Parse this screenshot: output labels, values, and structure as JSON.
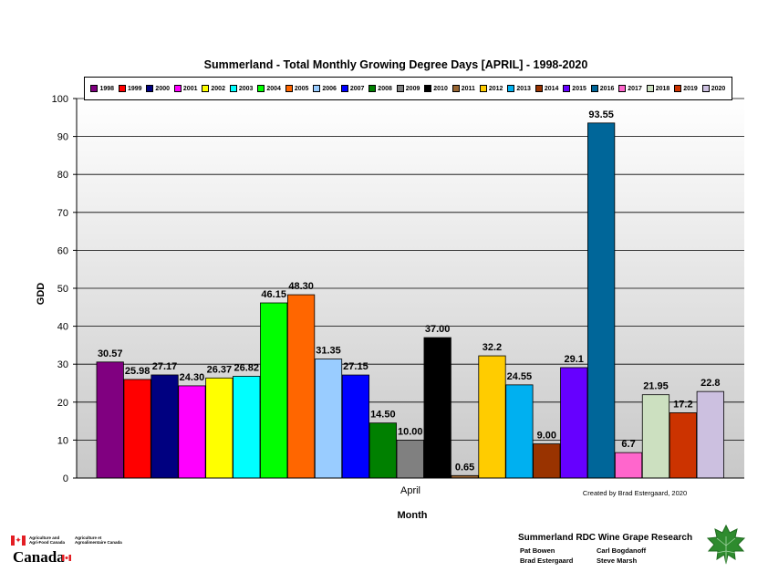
{
  "chart_data": {
    "type": "bar",
    "title": "Summerland - Total Monthly Growing Degree Days [APRIL] - 1998-2020",
    "xlabel": "Month",
    "ylabel": "GDD",
    "categories": [
      "April"
    ],
    "ylim": [
      0,
      100
    ],
    "yticks": [
      "0",
      "10",
      "20",
      "30",
      "40",
      "50",
      "60",
      "70",
      "80",
      "90",
      "100"
    ],
    "grid": true,
    "legend_position": "top",
    "series": [
      {
        "name": "1998",
        "values": [
          30.57
        ],
        "label": "30.57",
        "color": "#800080"
      },
      {
        "name": "1999",
        "values": [
          25.98
        ],
        "label": "25.98",
        "color": "#ff0000"
      },
      {
        "name": "2000",
        "values": [
          27.17
        ],
        "label": "27.17",
        "color": "#000080"
      },
      {
        "name": "2001",
        "values": [
          24.3
        ],
        "label": "24.30",
        "color": "#ff00ff"
      },
      {
        "name": "2002",
        "values": [
          26.37
        ],
        "label": "26.37",
        "color": "#ffff00"
      },
      {
        "name": "2003",
        "values": [
          26.82
        ],
        "label": "26.82",
        "color": "#00ffff"
      },
      {
        "name": "2004",
        "values": [
          46.15
        ],
        "label": "46.15",
        "color": "#00ff00"
      },
      {
        "name": "2005",
        "values": [
          48.3
        ],
        "label": "48.30",
        "color": "#ff6600"
      },
      {
        "name": "2006",
        "values": [
          31.35
        ],
        "label": "31.35",
        "color": "#99ccff"
      },
      {
        "name": "2007",
        "values": [
          27.15
        ],
        "label": "27.15",
        "color": "#0000ff"
      },
      {
        "name": "2008",
        "values": [
          14.5
        ],
        "label": "14.50",
        "color": "#008000"
      },
      {
        "name": "2009",
        "values": [
          10.0
        ],
        "label": "10.00",
        "color": "#808080"
      },
      {
        "name": "2010",
        "values": [
          37.0
        ],
        "label": "37.00",
        "color": "#000000"
      },
      {
        "name": "2011",
        "values": [
          0.65
        ],
        "label": "0.65",
        "color": "#996633"
      },
      {
        "name": "2012",
        "values": [
          32.2
        ],
        "label": "32.2",
        "color": "#ffcc00"
      },
      {
        "name": "2013",
        "values": [
          24.55
        ],
        "label": "24.55",
        "color": "#00b0f0"
      },
      {
        "name": "2014",
        "values": [
          9.0
        ],
        "label": "9.00",
        "color": "#993300"
      },
      {
        "name": "2015",
        "values": [
          29.1
        ],
        "label": "29.1",
        "color": "#6600ff"
      },
      {
        "name": "2016",
        "values": [
          93.55
        ],
        "label": "93.55",
        "color": "#006699"
      },
      {
        "name": "2017",
        "values": [
          6.7
        ],
        "label": "6.7",
        "color": "#ff66cc"
      },
      {
        "name": "2018",
        "values": [
          21.95
        ],
        "label": "21.95",
        "color": "#cce0c0"
      },
      {
        "name": "2019",
        "values": [
          17.2
        ],
        "label": "17.2",
        "color": "#cc3300"
      },
      {
        "name": "2020",
        "values": [
          22.8
        ],
        "label": "22.8",
        "color": "#ccc0e0"
      }
    ],
    "annotation": "Created by Brad Estergaard, 2020"
  },
  "footer": {
    "agency_en": "Agriculture and\nAgri-Food Canada",
    "agency_fr": "Agriculture et\nAgroalimentaire Canada",
    "wordmark": "Canada",
    "org_title": "Summerland RDC Wine Grape Research",
    "names": [
      "Pat Bowen",
      "Carl Bogdanoff",
      "Brad Estergaard",
      "Steve Marsh"
    ]
  }
}
